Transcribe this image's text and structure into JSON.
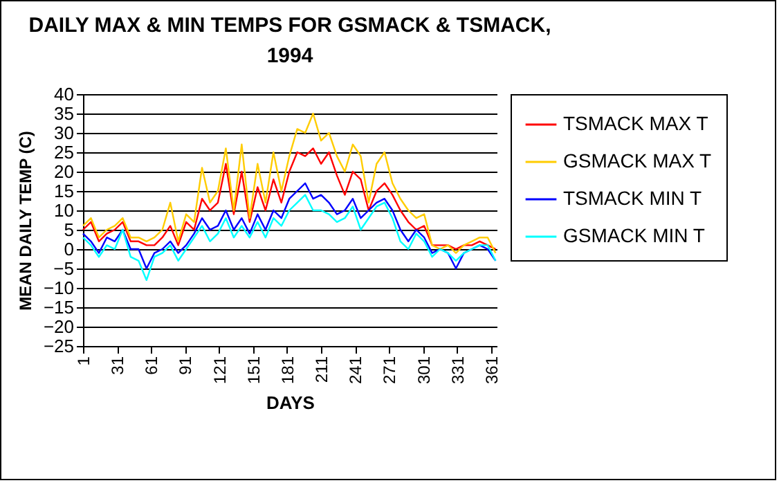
{
  "chart_data": {
    "type": "line",
    "title": "DAILY MAX & MIN TEMPS FOR GSMACK & TSMACK, 1994",
    "xlabel": "DAYS",
    "ylabel": "MEAN DAILY TEMP (C)",
    "x": [
      1,
      8,
      15,
      22,
      29,
      36,
      43,
      50,
      57,
      64,
      71,
      78,
      85,
      92,
      99,
      106,
      113,
      120,
      127,
      134,
      141,
      148,
      155,
      162,
      169,
      176,
      183,
      190,
      197,
      204,
      211,
      218,
      225,
      232,
      239,
      246,
      253,
      260,
      267,
      274,
      281,
      288,
      295,
      302,
      309,
      316,
      323,
      330,
      337,
      344,
      351,
      358,
      365
    ],
    "series": [
      {
        "name": "TSMACK MAX T",
        "color": "#ff0000",
        "values": [
          5,
          7,
          2,
          4,
          5,
          7,
          2,
          2,
          1,
          1,
          3,
          6,
          1,
          7,
          5,
          13,
          10,
          12,
          22,
          9,
          20,
          7,
          16,
          10,
          18,
          12,
          20,
          25,
          24,
          26,
          22,
          25,
          19,
          14,
          20,
          18,
          10,
          15,
          17,
          14,
          10,
          7,
          5,
          6,
          1,
          1,
          1,
          0,
          1,
          1,
          2,
          1,
          0
        ]
      },
      {
        "name": "GSMACK MAX T",
        "color": "#ffcc00",
        "values": [
          6,
          8,
          3,
          5,
          6,
          8,
          3,
          3,
          2,
          3,
          5,
          12,
          2,
          9,
          7,
          21,
          12,
          15,
          26,
          10,
          27,
          8,
          22,
          12,
          25,
          15,
          24,
          31,
          30,
          35,
          28,
          30,
          24,
          20,
          27,
          24,
          12,
          22,
          25,
          17,
          13,
          10,
          8,
          9,
          1,
          0,
          1,
          -1,
          1,
          2,
          3,
          3,
          -1
        ]
      },
      {
        "name": "TSMACK MIN T",
        "color": "#0000ff",
        "values": [
          4,
          2,
          -1,
          3,
          2,
          5,
          0,
          0,
          -5,
          -1,
          0,
          2,
          -1,
          1,
          4,
          8,
          5,
          6,
          10,
          5,
          8,
          4,
          9,
          5,
          10,
          8,
          13,
          15,
          17,
          13,
          14,
          12,
          9,
          10,
          13,
          8,
          10,
          12,
          13,
          10,
          5,
          2,
          5,
          3,
          -1,
          0,
          -1,
          -5,
          -1,
          0,
          1,
          0,
          -3
        ]
      },
      {
        "name": "GSMACK MIN T",
        "color": "#00ffff",
        "values": [
          3,
          1,
          -2,
          1,
          0,
          5,
          -2,
          -3,
          -8,
          -2,
          -1,
          1,
          -3,
          0,
          3,
          6,
          2,
          4,
          8,
          3,
          6,
          3,
          7,
          3,
          8,
          6,
          10,
          12,
          14,
          10,
          10,
          9,
          7,
          8,
          11,
          5,
          8,
          11,
          12,
          8,
          2,
          0,
          4,
          2,
          -2,
          0,
          -1,
          -3,
          -1,
          0,
          1,
          1,
          -3
        ]
      }
    ],
    "xlim": [
      1,
      366
    ],
    "xticks": [
      1,
      31,
      61,
      91,
      121,
      151,
      181,
      211,
      241,
      271,
      301,
      331,
      361
    ],
    "ylim": [
      -25,
      40
    ],
    "yticks": [
      -25,
      -20,
      -15,
      -10,
      -5,
      0,
      5,
      10,
      15,
      20,
      25,
      30,
      35,
      40
    ],
    "grid": "y",
    "legend": "right",
    "marker": "none",
    "line_style": "solid"
  }
}
